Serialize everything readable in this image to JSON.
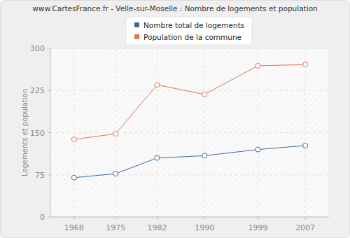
{
  "chart_data": {
    "type": "line",
    "title": "www.CartesFrance.fr - Velle-sur-Moselle : Nombre de logements et population",
    "y_label": "Logements et population",
    "x": [
      1968,
      1975,
      1982,
      1990,
      1999,
      2007
    ],
    "series": [
      {
        "name": "Nombre total de logements",
        "color": "#3a6b9c",
        "marker": "circle",
        "values": [
          70,
          77,
          105,
          109,
          120,
          127
        ]
      },
      {
        "name": "Population de la commune",
        "color": "#e0764a",
        "marker": "circle",
        "values": [
          138,
          148,
          235,
          218,
          269,
          271
        ]
      }
    ],
    "xlim": [
      1964,
      2011
    ],
    "xticks": [
      1968,
      1975,
      1982,
      1990,
      1999,
      2007
    ],
    "ylim": [
      0,
      300
    ],
    "yticks": [
      0,
      75,
      150,
      225,
      300
    ],
    "grid": true,
    "legend": "top"
  }
}
